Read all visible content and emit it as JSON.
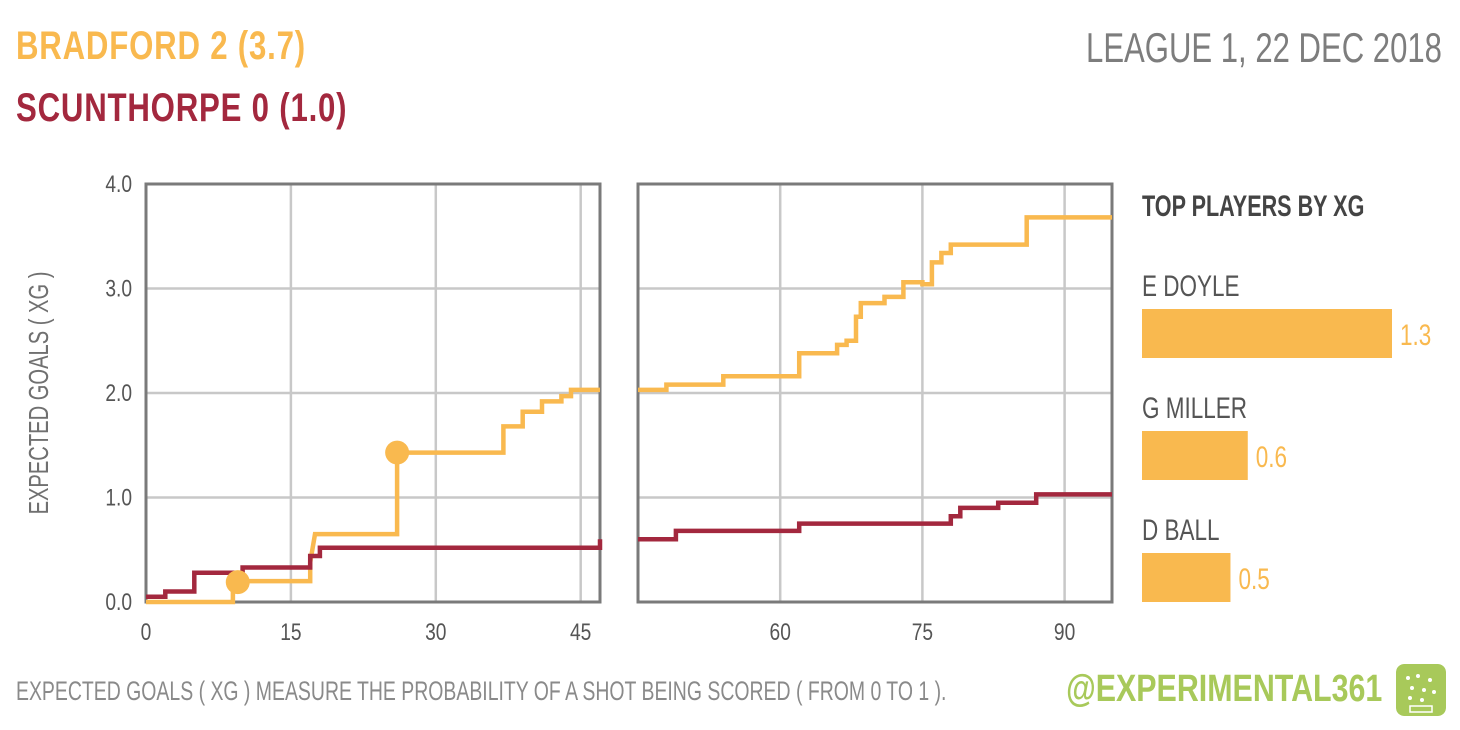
{
  "header": {
    "home_team": "BRADFORD",
    "home_goals": "2",
    "home_xg": "(3.7)",
    "away_team": "SCUNTHORPE",
    "away_goals": "0",
    "away_xg": "(1.0)",
    "match_info": "LEAGUE 1, 22 DEC 2018"
  },
  "colors": {
    "home": "#f9b94f",
    "away": "#a3283e",
    "grid": "#c8c8c8",
    "frame": "#7a7a7a",
    "text": "#555555",
    "logo": "#a8c95a"
  },
  "chart_data": {
    "type": "line",
    "step": true,
    "ylabel": "EXPECTED GOALS ( XG )",
    "ylim": [
      0,
      4
    ],
    "yticks": [
      "0.0",
      "1.0",
      "2.0",
      "3.0",
      "4.0"
    ],
    "panels": [
      {
        "name": "first-half",
        "xlim": [
          0,
          47
        ],
        "xticks": [
          "0",
          "15",
          "30",
          "45"
        ]
      },
      {
        "name": "second-half",
        "xlim": [
          45,
          95
        ],
        "xticks": [
          "60",
          "75",
          "90"
        ]
      }
    ],
    "series": [
      {
        "name": "BRADFORD",
        "role": "home",
        "first_half": [
          [
            0,
            0
          ],
          [
            9,
            0
          ],
          [
            9,
            0.18
          ],
          [
            10,
            0.2
          ],
          [
            17,
            0.2
          ],
          [
            17,
            0.38
          ],
          [
            17.5,
            0.65
          ],
          [
            26,
            0.65
          ],
          [
            26,
            1.43
          ],
          [
            37,
            1.43
          ],
          [
            37,
            1.68
          ],
          [
            39,
            1.68
          ],
          [
            39,
            1.82
          ],
          [
            41,
            1.82
          ],
          [
            41,
            1.92
          ],
          [
            43,
            1.92
          ],
          [
            43,
            1.97
          ],
          [
            44,
            1.97
          ],
          [
            44,
            2.03
          ],
          [
            47,
            2.03
          ]
        ],
        "second_half": [
          [
            45,
            2.03
          ],
          [
            48,
            2.03
          ],
          [
            48,
            2.08
          ],
          [
            54,
            2.08
          ],
          [
            54,
            2.16
          ],
          [
            62,
            2.16
          ],
          [
            62,
            2.38
          ],
          [
            66,
            2.38
          ],
          [
            66,
            2.46
          ],
          [
            67,
            2.46
          ],
          [
            67,
            2.5
          ],
          [
            68,
            2.5
          ],
          [
            68,
            2.73
          ],
          [
            68.5,
            2.73
          ],
          [
            68.5,
            2.86
          ],
          [
            71,
            2.86
          ],
          [
            71,
            2.92
          ],
          [
            73,
            2.92
          ],
          [
            73,
            3.06
          ],
          [
            75,
            3.06
          ],
          [
            75,
            3.04
          ],
          [
            76,
            3.04
          ],
          [
            76,
            3.25
          ],
          [
            77,
            3.25
          ],
          [
            77,
            3.34
          ],
          [
            78,
            3.34
          ],
          [
            78,
            3.42
          ],
          [
            86,
            3.42
          ],
          [
            86,
            3.68
          ],
          [
            95,
            3.68
          ]
        ],
        "goals": [
          [
            9.5,
            0.19
          ],
          [
            26,
            1.43
          ]
        ]
      },
      {
        "name": "SCUNTHORPE",
        "role": "away",
        "first_half": [
          [
            0,
            0.05
          ],
          [
            2,
            0.05
          ],
          [
            2,
            0.1
          ],
          [
            5,
            0.1
          ],
          [
            5,
            0.28
          ],
          [
            10,
            0.28
          ],
          [
            10,
            0.33
          ],
          [
            17,
            0.33
          ],
          [
            17,
            0.44
          ],
          [
            18,
            0.44
          ],
          [
            18,
            0.52
          ],
          [
            47,
            0.52
          ],
          [
            47,
            0.6
          ]
        ],
        "second_half": [
          [
            45,
            0.6
          ],
          [
            49,
            0.6
          ],
          [
            49,
            0.68
          ],
          [
            62,
            0.68
          ],
          [
            62,
            0.75
          ],
          [
            78,
            0.75
          ],
          [
            78,
            0.82
          ],
          [
            79,
            0.82
          ],
          [
            79,
            0.9
          ],
          [
            83,
            0.9
          ],
          [
            83,
            0.95
          ],
          [
            87,
            0.95
          ],
          [
            87,
            1.03
          ],
          [
            95,
            1.03
          ]
        ],
        "goals": []
      }
    ]
  },
  "top_players": {
    "title": "TOP PLAYERS BY XG",
    "max": 1.3,
    "players": [
      {
        "name": "E DOYLE",
        "xg": 1.3,
        "label": "1.3"
      },
      {
        "name": "G MILLER",
        "xg": 0.55,
        "label": "0.6"
      },
      {
        "name": "D BALL",
        "xg": 0.46,
        "label": "0.5"
      }
    ]
  },
  "footer": {
    "note": "EXPECTED GOALS ( XG ) MEASURE THE PROBABILITY  OF A SHOT BEING SCORED ( FROM 0 TO 1 ).",
    "handle": "@EXPERIMENTAL361",
    "logo_icon": "pitch-icon"
  }
}
